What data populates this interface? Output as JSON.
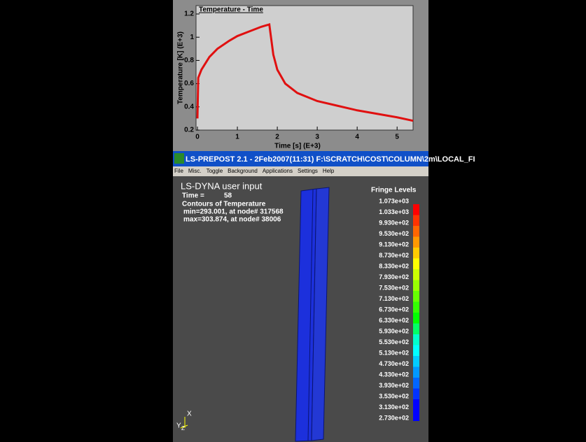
{
  "chart_data": {
    "type": "line",
    "title": "Temperature - Time",
    "x_label": "Time [s] (E+3)",
    "y_label": "Temperature [K] (E+3)",
    "x": [
      0,
      0.02,
      0.1,
      0.3,
      0.5,
      0.8,
      1,
      1.3,
      1.6,
      1.8,
      1.85,
      1.9,
      2,
      2.2,
      2.5,
      3,
      3.5,
      4,
      4.5,
      5,
      5.4
    ],
    "series": [
      {
        "color": "#e01010",
        "values": [
          0.3,
          0.65,
          0.72,
          0.83,
          0.9,
          0.97,
          1.01,
          1.05,
          1.09,
          1.11,
          0.98,
          0.85,
          0.72,
          0.6,
          0.52,
          0.45,
          0.41,
          0.37,
          0.34,
          0.31,
          0.28
        ]
      }
    ],
    "xlim": [
      0,
      5.4
    ],
    "ylim": [
      0.2,
      1.2
    ],
    "xticks": [
      0,
      1,
      2,
      3,
      4,
      5
    ],
    "yticks": [
      0.2,
      0.4,
      0.6,
      0.8,
      1,
      1.2
    ]
  },
  "window": {
    "title": "LS-PREPOST 2.1 - 2Feb2007(11:31) F:\\SCRATCH\\COST\\COLUMN\\2m\\LOCAL_FI",
    "menu": [
      "File",
      "Misc.",
      "Toggle",
      "Background",
      "Applications",
      "Settings",
      "Help"
    ]
  },
  "viewport": {
    "heading": "LS-DYNA user input",
    "time_label": "Time =",
    "time": 58,
    "info": [
      "Contours of Temperature",
      "min=293.001, at node# 317568",
      "max=303.874, at node# 38006"
    ],
    "fringe": {
      "title": "Fringe Levels",
      "levels": [
        "1.073e+03",
        "1.033e+03",
        "9.930e+02",
        "9.530e+02",
        "9.130e+02",
        "8.730e+02",
        "8.330e+02",
        "7.930e+02",
        "7.530e+02",
        "7.130e+02",
        "6.730e+02",
        "6.330e+02",
        "5.930e+02",
        "5.530e+02",
        "5.130e+02",
        "4.730e+02",
        "4.330e+02",
        "3.930e+02",
        "3.530e+02",
        "3.130e+02",
        "2.730e+02"
      ],
      "colors": [
        "#ff0000",
        "#ff3300",
        "#ff6600",
        "#ff9900",
        "#ffcc00",
        "#ffff00",
        "#ccff00",
        "#99ff00",
        "#66ff00",
        "#33ff00",
        "#00ff00",
        "#00ff66",
        "#00ffcc",
        "#00ffff",
        "#00ccff",
        "#0099ff",
        "#0066ff",
        "#0033ff",
        "#0000ff",
        "#0000ff"
      ]
    },
    "axes": [
      "Y",
      "Z",
      "X"
    ]
  }
}
